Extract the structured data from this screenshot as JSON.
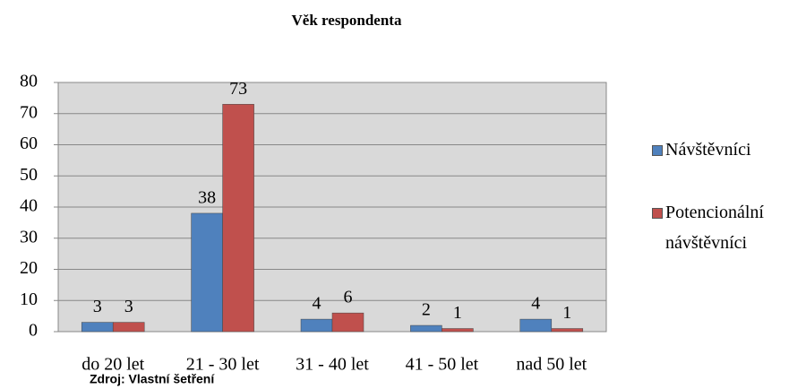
{
  "chart_data": {
    "type": "bar",
    "title": "Věk respondenta",
    "categories": [
      "do 20 let",
      "21 - 30 let",
      "31 - 40 let",
      "41 - 50 let",
      "nad 50 let"
    ],
    "series": [
      {
        "name": "Návštěvníci",
        "color": "#4f81bd",
        "values": [
          3,
          38,
          4,
          2,
          4
        ]
      },
      {
        "name": "Potencionální návštěvníci",
        "color": "#c0504d",
        "values": [
          3,
          73,
          6,
          1,
          1
        ]
      }
    ],
    "ylim": [
      0,
      80
    ],
    "yticks": [
      0,
      10,
      20,
      30,
      40,
      50,
      60,
      70,
      80
    ],
    "grid": true,
    "legend": "right",
    "source": "Zdroj: Vlastní šetření"
  }
}
